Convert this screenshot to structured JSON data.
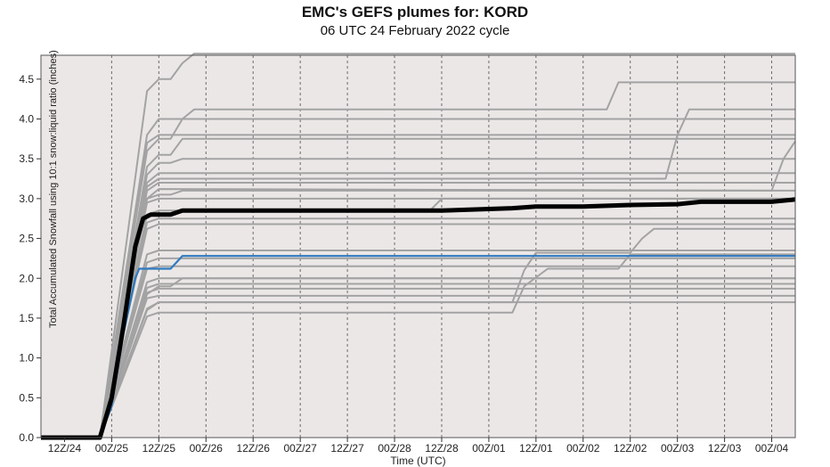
{
  "chart_data": {
    "type": "line",
    "title": "EMC's GEFS plumes for: KORD",
    "subtitle": "06 UTC 24 February 2022 cycle",
    "xlabel": "Time (UTC)",
    "ylabel": "Total Accumulated Snowfall using 10:1 snow:liquid ratio (inches)",
    "x_unit": "hours since 12Z/24",
    "x_ticks": [
      {
        "x": 0,
        "label": "12Z/24"
      },
      {
        "x": 12,
        "label": "00Z/25"
      },
      {
        "x": 24,
        "label": "12Z/25"
      },
      {
        "x": 36,
        "label": "00Z/26"
      },
      {
        "x": 48,
        "label": "12Z/26"
      },
      {
        "x": 60,
        "label": "00Z/27"
      },
      {
        "x": 72,
        "label": "12Z/27"
      },
      {
        "x": 84,
        "label": "00Z/28"
      },
      {
        "x": 96,
        "label": "12Z/28"
      },
      {
        "x": 108,
        "label": "00Z/01"
      },
      {
        "x": 120,
        "label": "12Z/01"
      },
      {
        "x": 132,
        "label": "00Z/02"
      },
      {
        "x": 144,
        "label": "12Z/02"
      },
      {
        "x": 156,
        "label": "00Z/03"
      },
      {
        "x": 168,
        "label": "12Z/03"
      },
      {
        "x": 180,
        "label": "00Z/04"
      }
    ],
    "xlim": [
      -6,
      186
    ],
    "ylim": [
      0,
      4.8
    ],
    "y_ticks": [
      0.0,
      0.5,
      1.0,
      1.5,
      2.0,
      2.5,
      3.0,
      3.5,
      4.0,
      4.5
    ],
    "y_tick_labels": [
      "0.0",
      "0.5",
      "1.0",
      "1.5",
      "2.0",
      "2.5",
      "3.0",
      "3.5",
      "4.0",
      "4.5"
    ],
    "grid": "vertical dotted",
    "plot_background": "#ebe7e6",
    "colors": {
      "member": "#a3a3a3",
      "mean": "#000000",
      "control": "#2f7ac0"
    },
    "series": [
      {
        "role": "member",
        "points": [
          [
            -6,
            0
          ],
          [
            9,
            0
          ],
          [
            21,
            4.35
          ],
          [
            24,
            4.5
          ],
          [
            27,
            4.5
          ],
          [
            30,
            4.7
          ],
          [
            33,
            4.82
          ],
          [
            186,
            4.82
          ]
        ]
      },
      {
        "role": "member",
        "points": [
          [
            -6,
            0
          ],
          [
            9,
            0
          ],
          [
            21,
            3.8
          ],
          [
            24,
            4.0
          ],
          [
            186,
            4.0
          ]
        ]
      },
      {
        "role": "member",
        "points": [
          [
            -6,
            0
          ],
          [
            9,
            0
          ],
          [
            21,
            3.6
          ],
          [
            24,
            3.75
          ],
          [
            27,
            3.75
          ],
          [
            30,
            4.0
          ],
          [
            33,
            4.12
          ],
          [
            138,
            4.12
          ],
          [
            141,
            4.46
          ],
          [
            186,
            4.46
          ]
        ]
      },
      {
        "role": "member",
        "points": [
          [
            -6,
            0
          ],
          [
            9,
            0
          ],
          [
            21,
            3.7
          ],
          [
            24,
            3.8
          ],
          [
            186,
            3.8
          ]
        ]
      },
      {
        "role": "member",
        "points": [
          [
            -6,
            0
          ],
          [
            9,
            0
          ],
          [
            21,
            3.4
          ],
          [
            24,
            3.55
          ],
          [
            27,
            3.55
          ],
          [
            30,
            3.75
          ],
          [
            186,
            3.75
          ]
        ]
      },
      {
        "role": "member",
        "points": [
          [
            -6,
            0
          ],
          [
            9,
            0
          ],
          [
            21,
            3.3
          ],
          [
            24,
            3.45
          ],
          [
            27,
            3.45
          ],
          [
            30,
            3.5
          ],
          [
            186,
            3.5
          ]
        ]
      },
      {
        "role": "member",
        "points": [
          [
            -6,
            0
          ],
          [
            9,
            0
          ],
          [
            21,
            3.2
          ],
          [
            24,
            3.32
          ],
          [
            186,
            3.32
          ]
        ]
      },
      {
        "role": "member",
        "points": [
          [
            -6,
            0
          ],
          [
            9,
            0
          ],
          [
            21,
            3.15
          ],
          [
            24,
            3.25
          ],
          [
            153,
            3.25
          ],
          [
            156,
            3.8
          ],
          [
            159,
            4.12
          ],
          [
            186,
            4.12
          ]
        ]
      },
      {
        "role": "member",
        "points": [
          [
            -6,
            0
          ],
          [
            9,
            0
          ],
          [
            21,
            3.1
          ],
          [
            24,
            3.2
          ],
          [
            186,
            3.2
          ]
        ]
      },
      {
        "role": "member",
        "points": [
          [
            -6,
            0
          ],
          [
            9,
            0
          ],
          [
            21,
            3.0
          ],
          [
            24,
            3.12
          ],
          [
            180,
            3.1
          ],
          [
            183,
            3.5
          ],
          [
            186,
            3.72
          ]
        ]
      },
      {
        "role": "member",
        "points": [
          [
            -6,
            0
          ],
          [
            9,
            0
          ],
          [
            21,
            3.0
          ],
          [
            24,
            3.05
          ],
          [
            27,
            3.05
          ],
          [
            30,
            3.1
          ],
          [
            186,
            3.1
          ]
        ]
      },
      {
        "role": "member",
        "points": [
          [
            -6,
            0
          ],
          [
            9,
            0
          ],
          [
            21,
            2.95
          ],
          [
            24,
            3.0
          ],
          [
            186,
            3.0
          ]
        ]
      },
      {
        "role": "member",
        "points": [
          [
            -6,
            0
          ],
          [
            9,
            0
          ],
          [
            21,
            2.8
          ],
          [
            24,
            2.85
          ],
          [
            93,
            2.85
          ],
          [
            96,
            3.0
          ],
          [
            186,
            3.0
          ]
        ]
      },
      {
        "role": "member",
        "points": [
          [
            -6,
            0
          ],
          [
            9,
            0
          ],
          [
            21,
            2.7
          ],
          [
            24,
            2.75
          ],
          [
            186,
            2.75
          ]
        ]
      },
      {
        "role": "member",
        "points": [
          [
            -6,
            0
          ],
          [
            9,
            0
          ],
          [
            21,
            2.62
          ],
          [
            24,
            2.68
          ],
          [
            186,
            2.68
          ]
        ]
      },
      {
        "role": "member",
        "points": [
          [
            -6,
            0
          ],
          [
            9,
            0
          ],
          [
            21,
            2.3
          ],
          [
            24,
            2.35
          ],
          [
            186,
            2.35
          ]
        ]
      },
      {
        "role": "member",
        "points": [
          [
            -6,
            0
          ],
          [
            9,
            0
          ],
          [
            21,
            2.2
          ],
          [
            24,
            2.25
          ],
          [
            186,
            2.25
          ]
        ]
      },
      {
        "role": "member",
        "points": [
          [
            -6,
            0
          ],
          [
            9,
            0
          ],
          [
            21,
            2.12
          ],
          [
            24,
            2.15
          ],
          [
            186,
            2.15
          ]
        ]
      },
      {
        "role": "member",
        "points": [
          [
            -6,
            0
          ],
          [
            9,
            0
          ],
          [
            21,
            1.95
          ],
          [
            24,
            2.0
          ],
          [
            186,
            2.0
          ]
        ]
      },
      {
        "role": "member",
        "points": [
          [
            -6,
            0
          ],
          [
            9,
            0
          ],
          [
            21,
            1.88
          ],
          [
            24,
            1.93
          ],
          [
            186,
            1.93
          ]
        ]
      },
      {
        "role": "member",
        "points": [
          [
            -6,
            0
          ],
          [
            9,
            0
          ],
          [
            21,
            1.82
          ],
          [
            24,
            1.87
          ],
          [
            186,
            1.87
          ]
        ]
      },
      {
        "role": "member",
        "points": [
          [
            -6,
            0
          ],
          [
            9,
            0
          ],
          [
            21,
            1.75
          ],
          [
            24,
            1.78
          ],
          [
            186,
            1.78
          ]
        ]
      },
      {
        "role": "member",
        "points": [
          [
            -6,
            0
          ],
          [
            9,
            0
          ],
          [
            21,
            1.6
          ],
          [
            24,
            1.7
          ],
          [
            186,
            1.7
          ]
        ]
      },
      {
        "role": "member",
        "points": [
          [
            -6,
            0
          ],
          [
            9,
            0
          ],
          [
            21,
            1.52
          ],
          [
            24,
            1.57
          ],
          [
            114,
            1.57
          ],
          [
            117,
            1.9
          ],
          [
            123,
            2.12
          ],
          [
            141,
            2.12
          ],
          [
            144,
            2.3
          ],
          [
            186,
            2.3
          ]
        ]
      },
      {
        "role": "member",
        "points": [
          [
            -6,
            0
          ],
          [
            9,
            0
          ],
          [
            21,
            1.62
          ],
          [
            24,
            1.7
          ],
          [
            114,
            1.7
          ],
          [
            117,
            2.1
          ],
          [
            120,
            2.32
          ],
          [
            144,
            2.32
          ],
          [
            147,
            2.5
          ],
          [
            150,
            2.62
          ],
          [
            186,
            2.62
          ]
        ]
      },
      {
        "role": "member",
        "points": [
          [
            -6,
            0
          ],
          [
            9,
            0
          ],
          [
            21,
            1.8
          ],
          [
            24,
            1.9
          ],
          [
            27,
            1.9
          ],
          [
            30,
            2.0
          ],
          [
            186,
            2.0
          ]
        ]
      },
      {
        "role": "control",
        "points": [
          [
            -6,
            0
          ],
          [
            9,
            0
          ],
          [
            12,
            0.4
          ],
          [
            15,
            1.3
          ],
          [
            18,
            2.0
          ],
          [
            19,
            2.12
          ],
          [
            27,
            2.12
          ],
          [
            30,
            2.28
          ],
          [
            186,
            2.28
          ]
        ]
      },
      {
        "role": "mean",
        "points": [
          [
            -6,
            0
          ],
          [
            9,
            0
          ],
          [
            12,
            0.5
          ],
          [
            15,
            1.4
          ],
          [
            18,
            2.4
          ],
          [
            20,
            2.75
          ],
          [
            22,
            2.8
          ],
          [
            27,
            2.8
          ],
          [
            30,
            2.85
          ],
          [
            96,
            2.85
          ],
          [
            114,
            2.88
          ],
          [
            120,
            2.9
          ],
          [
            132,
            2.9
          ],
          [
            144,
            2.92
          ],
          [
            156,
            2.93
          ],
          [
            162,
            2.96
          ],
          [
            180,
            2.96
          ],
          [
            186,
            2.99
          ]
        ]
      }
    ]
  }
}
